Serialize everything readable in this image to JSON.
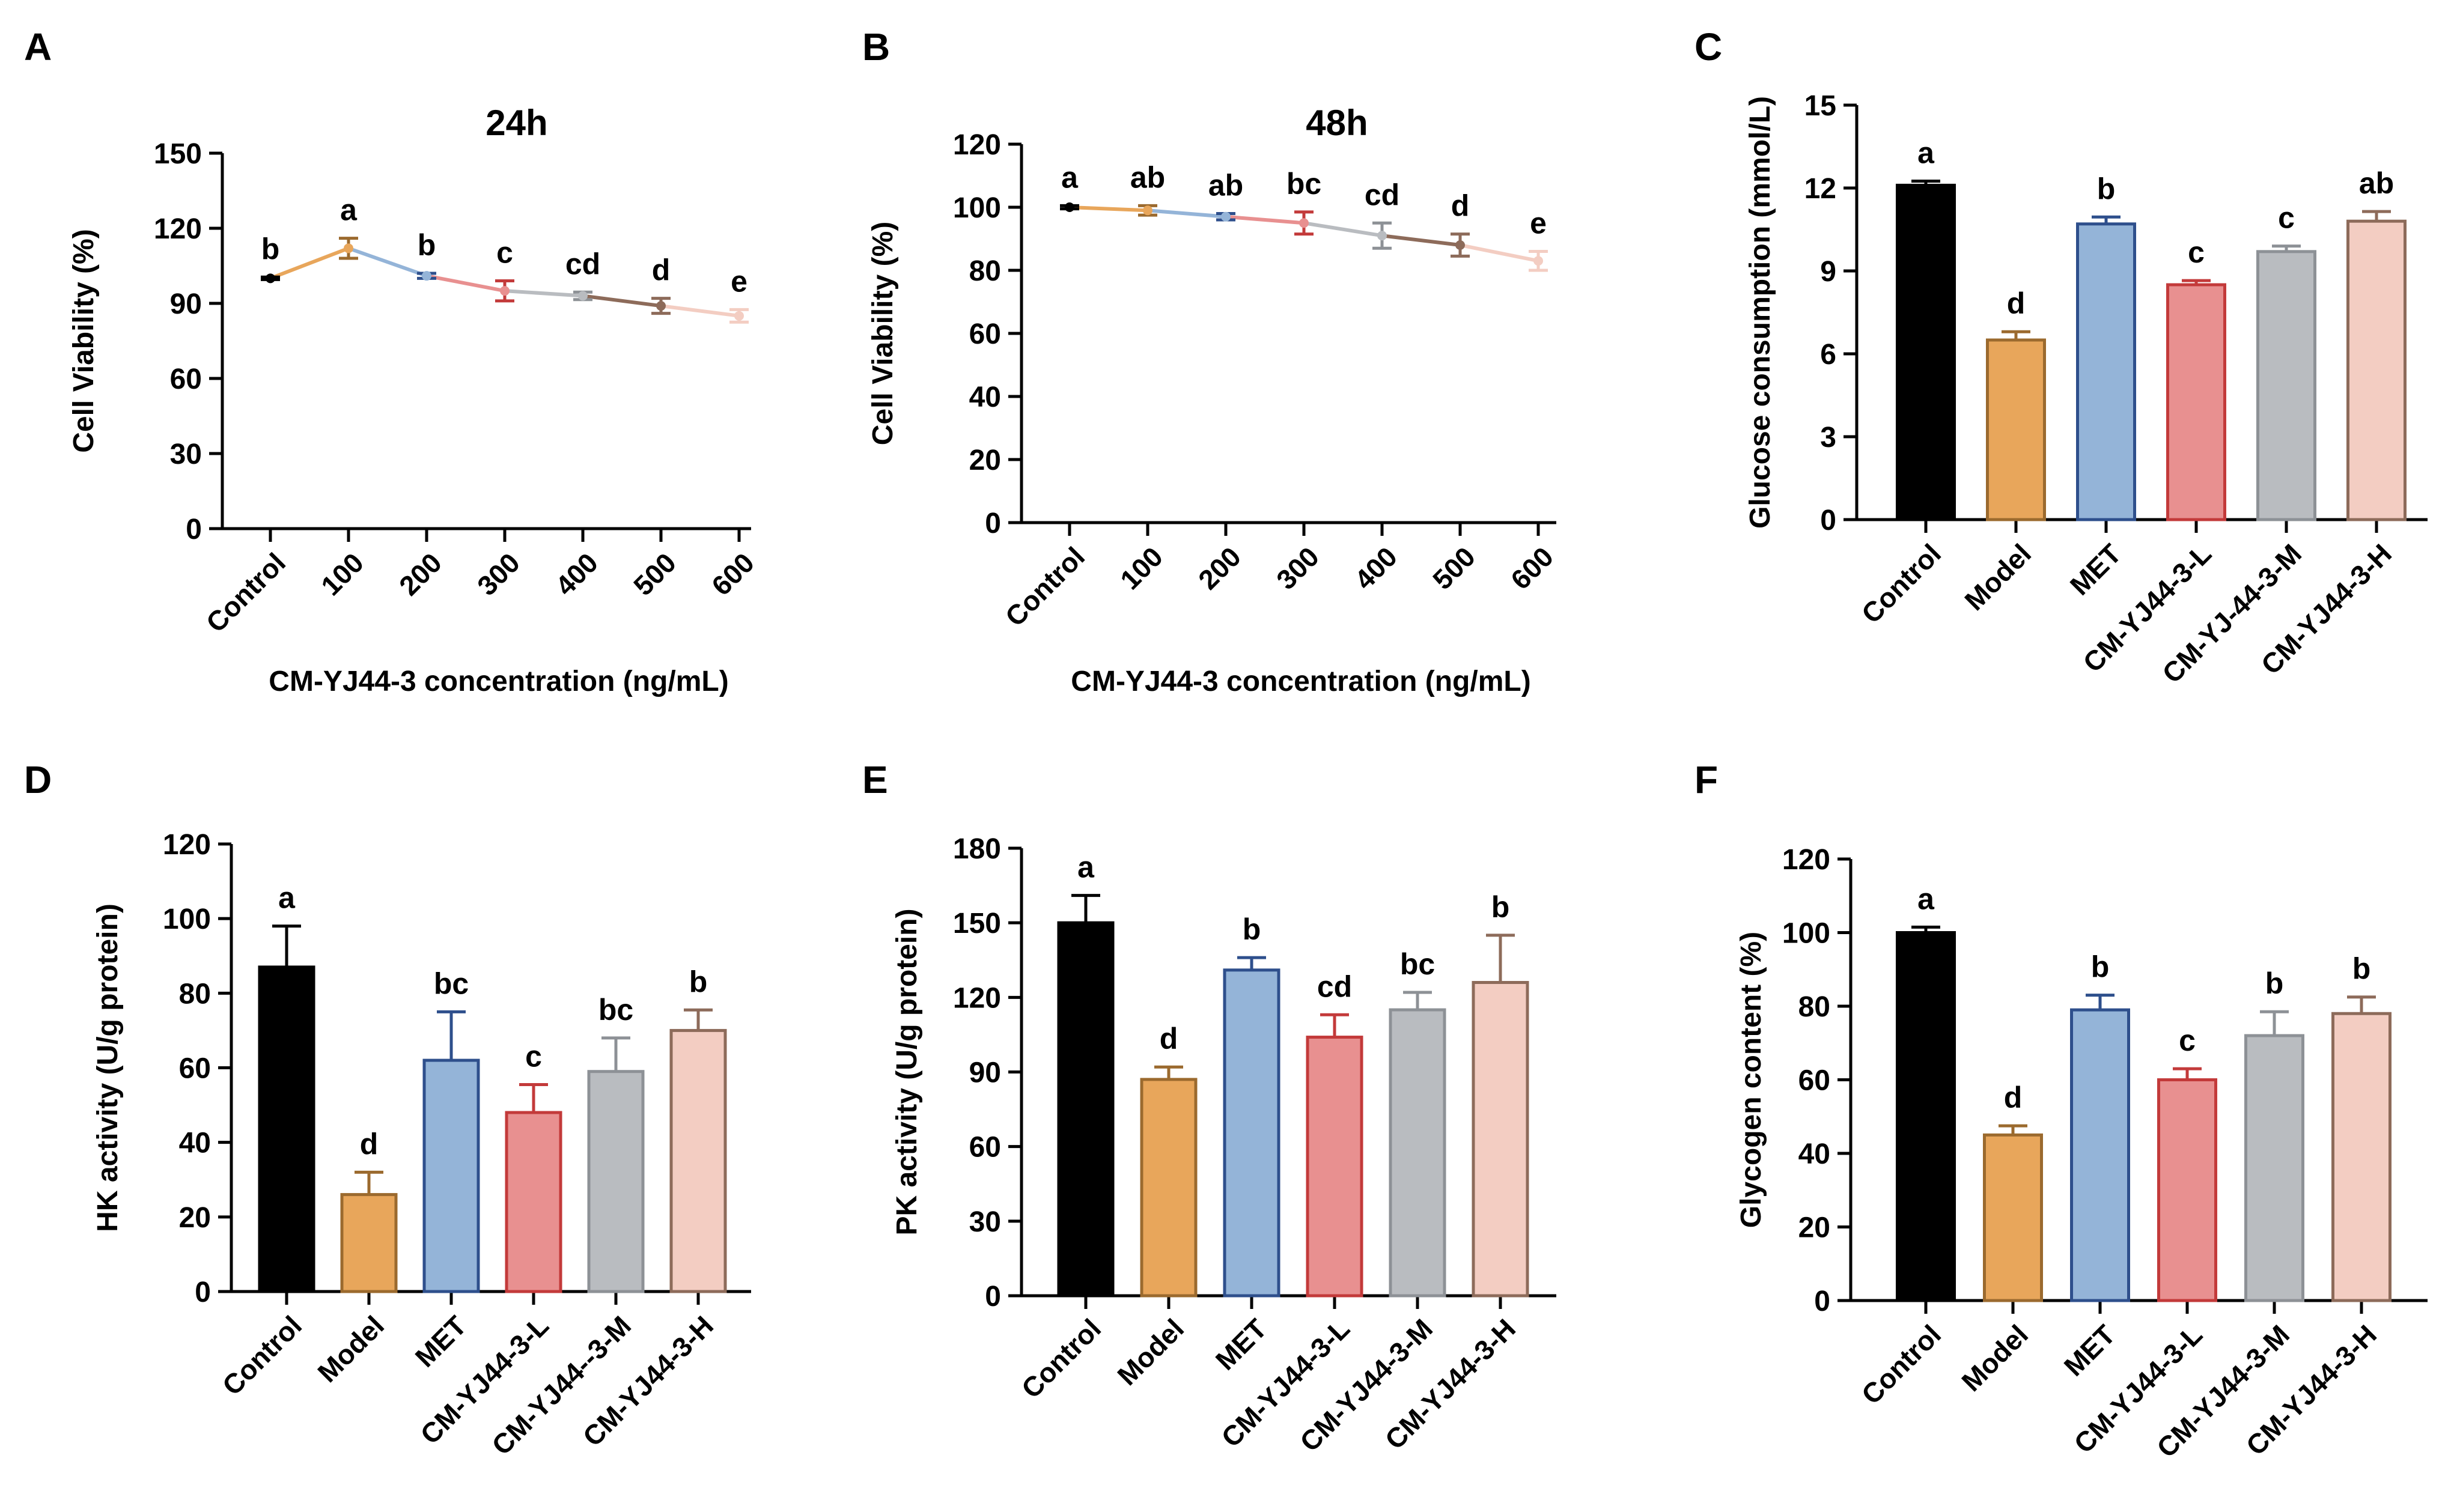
{
  "colors": {
    "control": "#000000",
    "model_fill": "#e8a65b",
    "model_edge": "#9b6a2e",
    "met_fill": "#94b4d8",
    "met_edge": "#2e4f8c",
    "low_fill": "#e89090",
    "low_edge": "#c33a3a",
    "mid_fill": "#b9bcc0",
    "mid_edge": "#8d9196",
    "high_fill": "#f3cdc2",
    "high_edge": "#8d6b5a",
    "line_100": "#e8a65b",
    "line_200": "#94b4d8",
    "line_300": "#e89090",
    "line_400": "#b9bcc0",
    "line_500": "#8d6b5a",
    "line_600": "#f3cdc2"
  },
  "chart_data": [
    {
      "id": "A",
      "panel_label": "A",
      "type": "line",
      "title": "24h",
      "xlabel": "CM-YJ44-3 concentration (ng/mL)",
      "ylabel": "Cell Viability (%)",
      "categories": [
        "Control",
        "100",
        "200",
        "300",
        "400",
        "500",
        "600"
      ],
      "values": [
        100,
        112,
        101,
        95,
        93,
        89,
        85
      ],
      "errors": [
        0.5,
        4,
        1,
        4,
        1.5,
        3,
        2.5
      ],
      "significance": [
        "b",
        "a",
        "b",
        "c",
        "cd",
        "d",
        "e"
      ],
      "ylim": [
        0,
        150
      ],
      "yticks": [
        "0",
        "30",
        "60",
        "90",
        "120",
        "150"
      ]
    },
    {
      "id": "B",
      "panel_label": "B",
      "type": "line",
      "title": "48h",
      "xlabel": "CM-YJ44-3 concentration (ng/mL)",
      "ylabel": "Cell Viability (%)",
      "categories": [
        "Control",
        "100",
        "200",
        "300",
        "400",
        "500",
        "600"
      ],
      "values": [
        100,
        99,
        97,
        95,
        91,
        88,
        83
      ],
      "errors": [
        0.5,
        1.5,
        1,
        3.5,
        4,
        3.5,
        3
      ],
      "significance": [
        "a",
        "ab",
        "ab",
        "bc",
        "cd",
        "d",
        "e"
      ],
      "ylim": [
        0,
        120
      ],
      "yticks": [
        "0",
        "20",
        "40",
        "60",
        "80",
        "100",
        "120"
      ]
    },
    {
      "id": "C",
      "panel_label": "C",
      "type": "bar",
      "title": "",
      "xlabel": "",
      "ylabel": "Glucose consumption  (mmol/L)",
      "categories": [
        "Control",
        "Model",
        "MET",
        "CM-YJ44-3-L",
        "CM-YJ-44-3-M",
        "CM-YJ44-3-H"
      ],
      "values": [
        12.1,
        6.5,
        10.7,
        8.5,
        9.7,
        10.8
      ],
      "errors": [
        0.15,
        0.3,
        0.25,
        0.15,
        0.2,
        0.35
      ],
      "significance": [
        "a",
        "d",
        "b",
        "c",
        "c",
        "ab"
      ],
      "ylim": [
        0,
        15
      ],
      "yticks": [
        "0",
        "3",
        "6",
        "9",
        "12",
        "15"
      ]
    },
    {
      "id": "D",
      "panel_label": "D",
      "type": "bar",
      "title": "",
      "xlabel": "",
      "ylabel": "HK activity (U/g protein)",
      "categories": [
        "Control",
        "Model",
        "MET",
        "CM-YJ44-3-L",
        "CM-YJ44--3-M",
        "CM-YJ44-3-H"
      ],
      "values": [
        87,
        26,
        62,
        48,
        59,
        70
      ],
      "errors": [
        11,
        6,
        13,
        7.5,
        9,
        5.5
      ],
      "significance": [
        "a",
        "d",
        "bc",
        "c",
        "bc",
        "b"
      ],
      "ylim": [
        0,
        120
      ],
      "yticks": [
        "0",
        "20",
        "40",
        "60",
        "80",
        "100",
        "120"
      ]
    },
    {
      "id": "E",
      "panel_label": "E",
      "type": "bar",
      "title": "",
      "xlabel": "",
      "ylabel": "PK activity (U/g protein)",
      "categories": [
        "Control",
        "Model",
        "MET",
        "CM-YJ44-3-L",
        "CM-YJ44-3-M",
        "CM-YJ44-3-H"
      ],
      "values": [
        150,
        87,
        131,
        104,
        115,
        126
      ],
      "errors": [
        11,
        5,
        5,
        9,
        7,
        19
      ],
      "significance": [
        "a",
        "d",
        "b",
        "cd",
        "bc",
        "b"
      ],
      "ylim": [
        0,
        180
      ],
      "yticks": [
        "0",
        "30",
        "60",
        "90",
        "120",
        "150",
        "180"
      ]
    },
    {
      "id": "F",
      "panel_label": "F",
      "type": "bar",
      "title": "",
      "xlabel": "",
      "ylabel": "Glycogen content (%)",
      "categories": [
        "Control",
        "Model",
        "MET",
        "CM-YJ44-3-L",
        "CM-YJ44-3-M",
        "CM-YJ44-3-H"
      ],
      "values": [
        100,
        45,
        79,
        60,
        72,
        78
      ],
      "errors": [
        1.5,
        2.5,
        4,
        3,
        6.5,
        4.5
      ],
      "significance": [
        "a",
        "d",
        "b",
        "c",
        "b",
        "b"
      ],
      "ylim": [
        0,
        120
      ],
      "yticks": [
        "0",
        "20",
        "40",
        "60",
        "80",
        "100",
        "120"
      ]
    }
  ]
}
